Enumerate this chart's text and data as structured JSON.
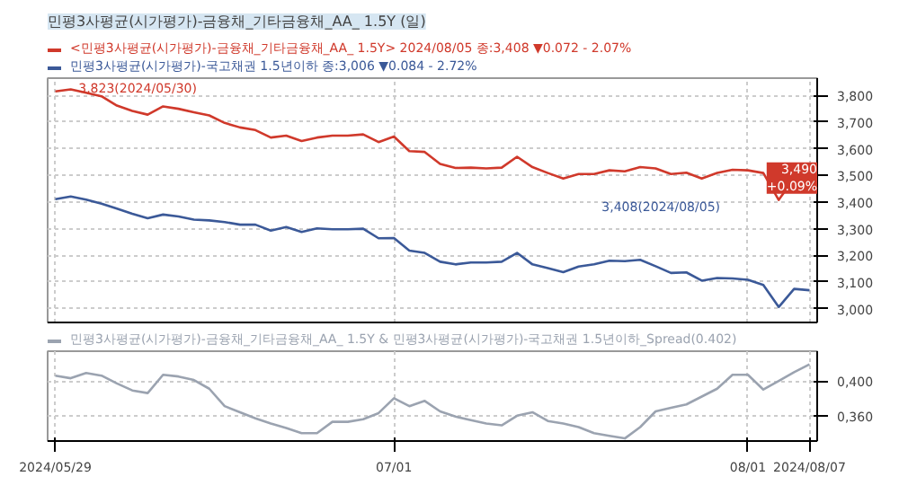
{
  "chart_data": [
    {
      "type": "line",
      "title": "민평3사평균(시가평가)-금융채_기타금융채_AA_ 1.5Y (일)",
      "categories": [
        null,
        null,
        null,
        null,
        null,
        null,
        null,
        null,
        null,
        null,
        null,
        null,
        null,
        null,
        null,
        null,
        null,
        null,
        null,
        null,
        null,
        null,
        null,
        null,
        null,
        null,
        null,
        null,
        null,
        null,
        null,
        null,
        null,
        null,
        null,
        null,
        null,
        null,
        null,
        null,
        null,
        null,
        null,
        null,
        null,
        null,
        null,
        null,
        null,
        null
      ],
      "series": [
        {
          "name": "<민평3사평균(시가평가)-금융채_기타금융채_AA_ 1.5Y> 2024/08/05 종:3,408 ▼0.072 - 2.07%",
          "color": "#d0392b",
          "values": [
            3815,
            3823,
            3810,
            3797,
            3762,
            3742,
            3728,
            3759,
            3750,
            3737,
            3725,
            3697,
            3680,
            3670,
            3642,
            3649,
            3629,
            3642,
            3649,
            3649,
            3654,
            3625,
            3646,
            3591,
            3588,
            3543,
            3528,
            3529,
            3526,
            3529,
            3570,
            3531,
            3509,
            3488,
            3505,
            3505,
            3519,
            3515,
            3531,
            3526,
            3505,
            3510,
            3488,
            3509,
            3521,
            3519,
            3509,
            3408,
            3488,
            3490
          ]
        },
        {
          "name": "민평3사평균(시가평가)-국고채권 1.5년이하 종:3,006 ▼0.084 - 2.72%",
          "color": "#3b5998",
          "values": [
            3411,
            3421,
            3409,
            3394,
            3375,
            3356,
            3339,
            3353,
            3346,
            3334,
            3331,
            3325,
            3315,
            3315,
            3293,
            3306,
            3288,
            3301,
            3298,
            3298,
            3300,
            3264,
            3265,
            3218,
            3209,
            3176,
            3166,
            3173,
            3173,
            3176,
            3209,
            3166,
            3152,
            3137,
            3158,
            3166,
            3180,
            3178,
            3183,
            3159,
            3134,
            3136,
            3105,
            3115,
            3113,
            3108,
            3089,
            3006,
            3074,
            3069
          ]
        }
      ],
      "ylim": [
        2948,
        3865
      ],
      "yticks": [
        {
          "value": 3000,
          "label": "3,000"
        },
        {
          "value": 3100,
          "label": "3,100"
        },
        {
          "value": 3200,
          "label": "3,200"
        },
        {
          "value": 3300,
          "label": "3,300"
        },
        {
          "value": 3400,
          "label": "3,400"
        },
        {
          "value": 3500,
          "label": "3,500"
        },
        {
          "value": 3600,
          "label": "3,600"
        },
        {
          "value": 3700,
          "label": "3,700"
        },
        {
          "value": 3800,
          "label": "3,800"
        }
      ],
      "annotations": [
        "3,823(2024/05/30)",
        "3,408(2024/08/05)",
        {
          "text": "3,490\n+0.09%",
          "y": 3490
        }
      ],
      "grid": true,
      "legend": "top left",
      "tick_labels": "y"
    },
    {
      "type": "line",
      "categories": [
        "2024/05/29",
        null,
        null,
        null,
        null,
        null,
        null,
        null,
        null,
        null,
        null,
        null,
        null,
        null,
        null,
        null,
        null,
        null,
        null,
        null,
        null,
        null,
        "07/01",
        null,
        null,
        null,
        null,
        null,
        null,
        null,
        null,
        null,
        null,
        null,
        null,
        null,
        null,
        null,
        null,
        null,
        null,
        null,
        null,
        null,
        null,
        "08/01",
        null,
        null,
        null,
        "2024/08/07"
      ],
      "series": [
        {
          "name": "민평3사평균(시가평가)-금융채_기타금융채_AA_ 1.5Y & 민평3사평균(시가평가)-국고채권 1.5년이하_Spread(0.402)",
          "color": "#9ba3b0",
          "values": [
            0.406,
            0.403,
            0.409,
            0.406,
            0.397,
            0.389,
            0.386,
            0.407,
            0.405,
            0.401,
            0.391,
            0.371,
            0.364,
            0.357,
            0.351,
            0.346,
            0.34,
            0.34,
            0.353,
            0.353,
            0.356,
            0.363,
            0.38,
            0.371,
            0.377,
            0.365,
            0.359,
            0.355,
            0.351,
            0.349,
            0.36,
            0.364,
            0.354,
            0.351,
            0.347,
            0.34,
            0.337,
            0.334,
            0.347,
            0.365,
            0.369,
            0.373,
            0.382,
            0.391,
            0.407,
            0.407,
            0.39,
            0.4,
            0.41,
            0.419
          ]
        }
      ],
      "ylim": [
        0.331,
        0.434
      ],
      "yticks": [
        {
          "value": 0.36,
          "label": "0,360"
        },
        {
          "value": 0.4,
          "label": "0,400"
        }
      ],
      "grid": true,
      "legend": "top left"
    }
  ]
}
